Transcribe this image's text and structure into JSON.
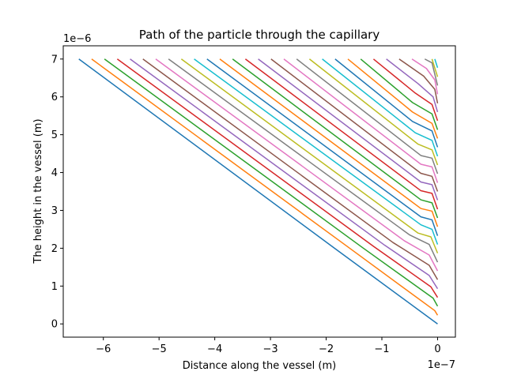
{
  "chart_data": {
    "type": "line",
    "title": "Path of the particle through the capillary",
    "xlabel": "Distance along the vessel (m)",
    "ylabel": "The height in the vessel (m)",
    "x_offset_label": "1e−7",
    "y_offset_label": "1e−6",
    "x_unit_scale": 1e-07,
    "y_unit_scale": 1e-06,
    "xlim": [
      -6.72,
      0.32
    ],
    "ylim": [
      -0.35,
      7.35
    ],
    "x_ticks": [
      -6,
      -5,
      -4,
      -3,
      -2,
      -1,
      0
    ],
    "x_tick_labels": [
      "−6",
      "−5",
      "−4",
      "−3",
      "−2",
      "−1",
      "0"
    ],
    "y_ticks": [
      0,
      1,
      2,
      3,
      4,
      5,
      6,
      7
    ],
    "y_tick_labels": [
      "0",
      "1",
      "2",
      "3",
      "4",
      "5",
      "6",
      "7"
    ],
    "grid": false,
    "legend": "none",
    "colors": [
      "#1f77b4",
      "#ff7f0e",
      "#2ca02c",
      "#d62728",
      "#9467bd",
      "#8c564b",
      "#e377c2",
      "#7f7f7f",
      "#bcbd22",
      "#17becf"
    ],
    "series": [
      {
        "x": [
          -6.44,
          -1.85,
          0.0
        ],
        "y": [
          7.0,
          2.0,
          0.0
        ]
      },
      {
        "x": [
          -6.21,
          -1.55,
          -0.05,
          0.0
        ],
        "y": [
          7.0,
          1.97,
          0.35,
          0.23
        ]
      },
      {
        "x": [
          -5.98,
          -1.35,
          -0.08,
          0.0
        ],
        "y": [
          7.0,
          2.02,
          0.68,
          0.47
        ]
      },
      {
        "x": [
          -5.75,
          -1.15,
          -0.12,
          0.0
        ],
        "y": [
          7.0,
          2.05,
          0.98,
          0.7
        ]
      },
      {
        "x": [
          -5.52,
          -0.95,
          -0.15,
          0.0
        ],
        "y": [
          7.0,
          2.08,
          1.28,
          0.93
        ]
      },
      {
        "x": [
          -5.29,
          -0.8,
          -0.15,
          0.0
        ],
        "y": [
          7.0,
          2.15,
          1.55,
          1.17
        ]
      },
      {
        "x": [
          -5.06,
          -0.6,
          -0.15,
          0.0
        ],
        "y": [
          7.0,
          2.2,
          1.82,
          1.4
        ]
      },
      {
        "x": [
          -4.83,
          -0.5,
          -0.15,
          0.0
        ],
        "y": [
          7.0,
          2.35,
          2.1,
          1.63
        ]
      },
      {
        "x": [
          -4.6,
          -0.35,
          -0.12,
          0.0
        ],
        "y": [
          7.0,
          2.4,
          2.3,
          1.87
        ]
      },
      {
        "x": [
          -4.37,
          -0.3,
          -0.1,
          0.0
        ],
        "y": [
          7.0,
          2.62,
          2.5,
          2.1
        ]
      },
      {
        "x": [
          -4.14,
          -0.3,
          -0.1,
          0.0
        ],
        "y": [
          7.0,
          2.83,
          2.75,
          2.33
        ]
      },
      {
        "x": [
          -3.91,
          -0.3,
          -0.1,
          0.0
        ],
        "y": [
          7.0,
          3.05,
          2.98,
          2.57
        ]
      },
      {
        "x": [
          -3.68,
          -0.3,
          -0.1,
          0.0
        ],
        "y": [
          7.0,
          3.28,
          3.2,
          2.8
        ]
      },
      {
        "x": [
          -3.45,
          -0.3,
          -0.1,
          0.0
        ],
        "y": [
          7.0,
          3.52,
          3.45,
          3.03
        ]
      },
      {
        "x": [
          -3.22,
          -0.3,
          -0.1,
          0.0
        ],
        "y": [
          7.0,
          3.75,
          3.68,
          3.27
        ]
      },
      {
        "x": [
          -2.99,
          -0.3,
          -0.1,
          0.0
        ],
        "y": [
          7.0,
          3.98,
          3.9,
          3.5
        ]
      },
      {
        "x": [
          -2.76,
          -0.3,
          -0.1,
          0.0
        ],
        "y": [
          7.0,
          4.22,
          4.15,
          3.73
        ]
      },
      {
        "x": [
          -2.53,
          -0.3,
          -0.1,
          0.0
        ],
        "y": [
          7.0,
          4.45,
          4.38,
          3.97
        ]
      },
      {
        "x": [
          -2.3,
          -0.35,
          -0.1,
          0.0
        ],
        "y": [
          7.0,
          4.75,
          4.6,
          4.2
        ]
      },
      {
        "x": [
          -2.07,
          -0.4,
          -0.1,
          0.0
        ],
        "y": [
          7.0,
          5.05,
          4.85,
          4.43
        ]
      },
      {
        "x": [
          -1.84,
          -0.45,
          -0.1,
          0.0
        ],
        "y": [
          7.0,
          5.35,
          5.1,
          4.67
        ]
      },
      {
        "x": [
          -1.61,
          -0.45,
          -0.1,
          0.0
        ],
        "y": [
          7.0,
          5.6,
          5.3,
          4.9
        ]
      },
      {
        "x": [
          -1.38,
          -0.45,
          -0.1,
          0.0
        ],
        "y": [
          7.0,
          5.85,
          5.55,
          5.13
        ]
      },
      {
        "x": [
          -1.15,
          -0.4,
          -0.1,
          0.0
        ],
        "y": [
          7.0,
          6.1,
          5.8,
          5.37
        ]
      },
      {
        "x": [
          -0.92,
          -0.35,
          -0.08,
          0.0
        ],
        "y": [
          7.0,
          6.35,
          6.0,
          5.6
        ]
      },
      {
        "x": [
          -0.69,
          -0.25,
          -0.05,
          0.0
        ],
        "y": [
          7.0,
          6.55,
          6.2,
          5.83
        ]
      },
      {
        "x": [
          -0.46,
          -0.2,
          -0.05,
          0.0
        ],
        "y": [
          7.0,
          6.75,
          6.45,
          6.07
        ]
      },
      {
        "x": [
          -0.23,
          -0.1,
          0.0
        ],
        "y": [
          7.0,
          6.9,
          6.3
        ]
      },
      {
        "x": [
          -0.1,
          0.0
        ],
        "y": [
          7.0,
          6.53
        ]
      },
      {
        "x": [
          -0.05,
          0.0
        ],
        "y": [
          7.0,
          6.77
        ]
      },
      {
        "x": [
          0.0,
          0.0
        ],
        "y": [
          7.0,
          7.0
        ]
      }
    ]
  }
}
